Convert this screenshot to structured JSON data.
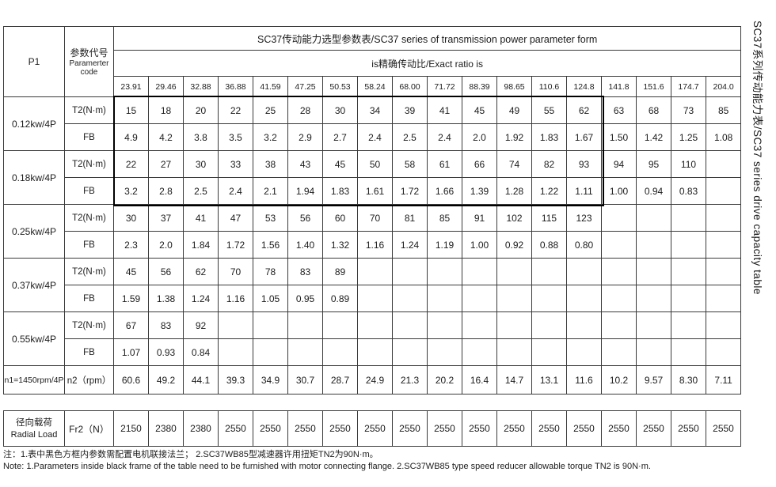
{
  "side_label": "SC37系列传动能力表/SC37 series drive capacity table",
  "header": {
    "p1": "P1",
    "param_code_cn": "参数代号",
    "param_code_en1": "Paramerter",
    "param_code_en2": "code",
    "title": "SC37传动能力选型参数表/SC37 series of transmission power parameter form",
    "ratio_label": "is精确传动比/Exact ratio is"
  },
  "ratios": [
    "23.91",
    "29.46",
    "32.88",
    "36.88",
    "41.59",
    "47.25",
    "50.53",
    "58.24",
    "68.00",
    "71.72",
    "88.39",
    "98.65",
    "110.6",
    "124.8",
    "141.8",
    "151.6",
    "174.7",
    "204.0"
  ],
  "power_rows": [
    {
      "power": "0.12kw/4P",
      "t2_label": "T2(N·m)",
      "fb_label": "FB",
      "t2": [
        "15",
        "18",
        "20",
        "22",
        "25",
        "28",
        "30",
        "34",
        "39",
        "41",
        "45",
        "49",
        "55",
        "62",
        "63",
        "68",
        "73",
        "85"
      ],
      "fb": [
        "4.9",
        "4.2",
        "3.8",
        "3.5",
        "3.2",
        "2.9",
        "2.7",
        "2.4",
        "2.5",
        "2.4",
        "2.0",
        "1.92",
        "1.83",
        "1.67",
        "1.50",
        "1.42",
        "1.25",
        "1.08"
      ]
    },
    {
      "power": "0.18kw/4P",
      "t2_label": "T2(N·m)",
      "fb_label": "FB",
      "t2": [
        "22",
        "27",
        "30",
        "33",
        "38",
        "43",
        "45",
        "50",
        "58",
        "61",
        "66",
        "74",
        "82",
        "93",
        "94",
        "95",
        "110",
        ""
      ],
      "fb": [
        "3.2",
        "2.8",
        "2.5",
        "2.4",
        "2.1",
        "1.94",
        "1.83",
        "1.61",
        "1.72",
        "1.66",
        "1.39",
        "1.28",
        "1.22",
        "1.11",
        "1.00",
        "0.94",
        "0.83",
        ""
      ]
    },
    {
      "power": "0.25kw/4P",
      "t2_label": "T2(N·m)",
      "fb_label": "FB",
      "t2": [
        "30",
        "37",
        "41",
        "47",
        "53",
        "56",
        "60",
        "70",
        "81",
        "85",
        "91",
        "102",
        "115",
        "123",
        "",
        "",
        "",
        ""
      ],
      "fb": [
        "2.3",
        "2.0",
        "1.84",
        "1.72",
        "1.56",
        "1.40",
        "1.32",
        "1.16",
        "1.24",
        "1.19",
        "1.00",
        "0.92",
        "0.88",
        "0.80",
        "",
        "",
        "",
        ""
      ]
    },
    {
      "power": "0.37kw/4P",
      "t2_label": "T2(N·m)",
      "fb_label": "FB",
      "t2": [
        "45",
        "56",
        "62",
        "70",
        "78",
        "83",
        "89",
        "",
        "",
        "",
        "",
        "",
        "",
        "",
        "",
        "",
        "",
        ""
      ],
      "fb": [
        "1.59",
        "1.38",
        "1.24",
        "1.16",
        "1.05",
        "0.95",
        "0.89",
        "",
        "",
        "",
        "",
        "",
        "",
        "",
        "",
        "",
        "",
        ""
      ]
    },
    {
      "power": "0.55kw/4P",
      "t2_label": "T2(N·m)",
      "fb_label": "FB",
      "t2": [
        "67",
        "83",
        "92",
        "",
        "",
        "",
        "",
        "",
        "",
        "",
        "",
        "",
        "",
        "",
        "",
        "",
        "",
        ""
      ],
      "fb": [
        "1.07",
        "0.93",
        "0.84",
        "",
        "",
        "",
        "",
        "",
        "",
        "",
        "",
        "",
        "",
        "",
        "",
        "",
        "",
        ""
      ]
    }
  ],
  "speed_row": {
    "label": "n1=1450rpm/4P",
    "param": "n2（rpm）",
    "values": [
      "60.6",
      "49.2",
      "44.1",
      "39.3",
      "34.9",
      "30.7",
      "28.7",
      "24.9",
      "21.3",
      "20.2",
      "16.4",
      "14.7",
      "13.1",
      "11.6",
      "10.2",
      "9.57",
      "8.30",
      "7.11"
    ]
  },
  "radial_row": {
    "label_cn": "径向载荷",
    "label_en": "Radial Load",
    "param": "Fr2（N）",
    "values": [
      "2150",
      "2380",
      "2380",
      "2550",
      "2550",
      "2550",
      "2550",
      "2550",
      "2550",
      "2550",
      "2550",
      "2550",
      "2550",
      "2550",
      "2550",
      "2550",
      "2550",
      "2550"
    ]
  },
  "notes": {
    "cn": "注：1.表中黑色方框内参数需配置电机联接法兰；  2.SC37WB85型减速器许用扭矩TN2为90N·m。",
    "en": "Note:  1.Parameters inside black frame of the table need to be furnished with motor connecting flange.   2.SC37WB85 type speed reducer allowable torque TN2 is 90N·m."
  }
}
